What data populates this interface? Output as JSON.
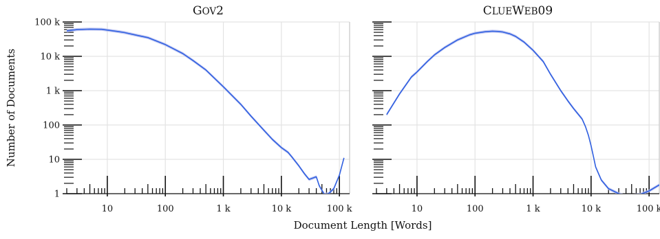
{
  "figure": {
    "xlabel": "Document Length [Words]",
    "ylabel": "Number of Documents"
  },
  "chart_data": [
    {
      "type": "line",
      "title": "GOV2",
      "title_parts": [
        [
          "G",
          "big"
        ],
        [
          "OV",
          "small"
        ],
        [
          "2",
          "big"
        ]
      ],
      "x_scale": "log",
      "y_scale": "log",
      "xlim": [
        2,
        150000
      ],
      "ylim": [
        1,
        100000
      ],
      "x_ticks": [
        10,
        100,
        1000,
        10000,
        100000
      ],
      "x_tick_labels": [
        "10",
        "100",
        "1 k",
        "10 k",
        "100 k"
      ],
      "y_ticks": [
        1,
        10,
        100,
        1000,
        10000,
        100000
      ],
      "y_tick_labels": [
        "1",
        "10",
        "100",
        "1 k",
        "10 k",
        "100 k"
      ],
      "grid": true,
      "series_color": "#2f5fe0",
      "band_color": "#b8bff0",
      "series": [
        {
          "x": [
            2,
            3,
            5,
            8,
            10,
            15,
            20,
            30,
            50,
            100,
            200,
            300,
            500,
            1000,
            2000,
            3000,
            5000,
            7000,
            10000,
            13000,
            15000,
            20000,
            25000,
            30000,
            40000,
            45000,
            55000,
            65000,
            80000,
            100000,
            120000
          ],
          "y": [
            55000,
            60000,
            62000,
            61000,
            58000,
            53000,
            49000,
            42000,
            35000,
            22000,
            12000,
            7500,
            4000,
            1300,
            400,
            180,
            70,
            38,
            22,
            16,
            12,
            6.5,
            3.8,
            2.6,
            3.1,
            1.7,
            0.95,
            1.0,
            1.4,
            3.5,
            11
          ]
        }
      ]
    },
    {
      "type": "line",
      "title": "CLUEWEB09",
      "title_parts": [
        [
          "C",
          "big"
        ],
        [
          "LUE",
          "small"
        ],
        [
          "W",
          "big"
        ],
        [
          "EB",
          "small"
        ],
        [
          "09",
          "big"
        ]
      ],
      "x_scale": "log",
      "y_scale": "log",
      "xlim": [
        2,
        150000
      ],
      "ylim": [
        1,
        100000
      ],
      "x_ticks": [
        10,
        100,
        1000,
        10000,
        100000
      ],
      "x_tick_labels": [
        "10",
        "100",
        "1 k",
        "10 k",
        "100 k"
      ],
      "y_ticks": [
        1,
        10,
        100,
        1000,
        10000,
        100000
      ],
      "y_tick_labels": [
        "",
        "",
        "",
        "",
        "",
        ""
      ],
      "grid": true,
      "series_color": "#2f5fe0",
      "band_color": "#b8bff0",
      "series": [
        {
          "x": [
            3,
            5,
            8,
            10,
            15,
            20,
            30,
            50,
            80,
            100,
            150,
            200,
            250,
            300,
            400,
            500,
            700,
            1000,
            1500,
            2000,
            3000,
            4000,
            5000,
            7000,
            8000,
            9000,
            10000,
            11000,
            12000,
            15000,
            20000,
            30000,
            40000,
            70000,
            100000,
            150000
          ],
          "y": [
            200,
            800,
            2500,
            3500,
            7000,
            11000,
            18000,
            30000,
            42000,
            47000,
            52000,
            54000,
            53000,
            51000,
            45000,
            38000,
            26000,
            15000,
            7000,
            3000,
            1000,
            500,
            300,
            150,
            90,
            50,
            25,
            12,
            6,
            2.5,
            1.4,
            1.0,
            0.85,
            0.95,
            1.2,
            1.8
          ]
        }
      ]
    }
  ]
}
